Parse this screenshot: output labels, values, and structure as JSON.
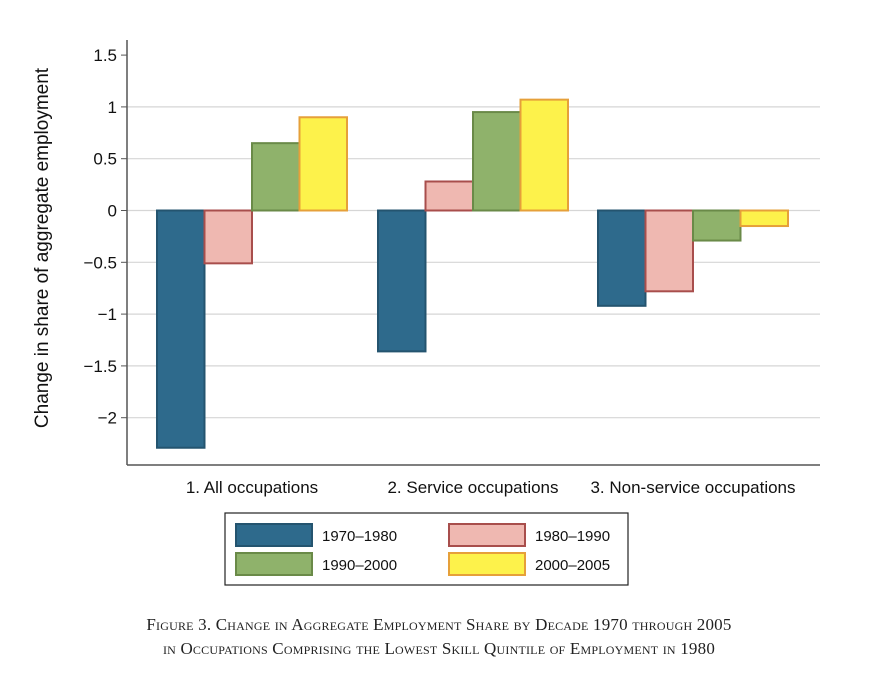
{
  "chart_data": {
    "type": "bar",
    "title": "",
    "xlabel": "",
    "ylabel": "Change in share of aggregate employment",
    "ylim": [
      -2.4,
      1.65
    ],
    "yticks": [
      1.5,
      1,
      0.5,
      0,
      -0.5,
      -1,
      -1.5,
      -2
    ],
    "ytick_labels": [
      "1.5",
      "1",
      "0.5",
      "0",
      "−0.5",
      "−1",
      "−1.5",
      "−2"
    ],
    "grid": true,
    "legend_position": "bottom",
    "categories": [
      "1. All occupations",
      "2. Service occupations",
      "3. Non-service occupations"
    ],
    "series": [
      {
        "name": "1970–1980",
        "values": [
          -2.29,
          -1.36,
          -0.92
        ],
        "color": "#2e6a8c",
        "stroke": "#24546f"
      },
      {
        "name": "1980–1990",
        "values": [
          -0.51,
          0.28,
          -0.78
        ],
        "color": "#efb8b1",
        "stroke": "#a84e4c"
      },
      {
        "name": "1990–2000",
        "values": [
          0.65,
          0.95,
          -0.29
        ],
        "color": "#8fb26b",
        "stroke": "#6a8a48"
      },
      {
        "name": "2000–2005",
        "values": [
          0.9,
          1.07,
          -0.15
        ],
        "color": "#fdf24b",
        "stroke": "#e6a03a"
      }
    ]
  },
  "caption": {
    "line1": "Figure 3. Change in Aggregate Employment Share by Decade 1970 through 2005",
    "line2": "in Occupations Comprising the Lowest Skill Quintile of Employment in 1980"
  }
}
